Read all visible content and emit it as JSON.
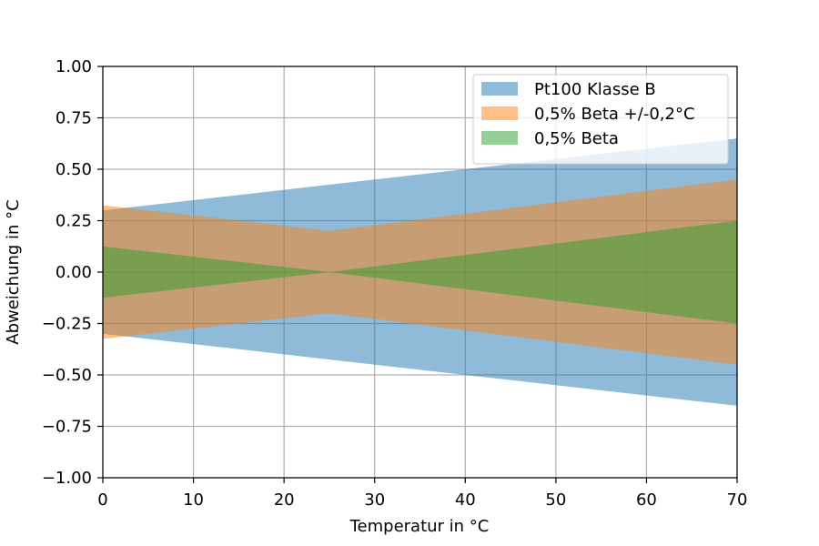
{
  "chart_data": {
    "type": "area",
    "title": "",
    "xlabel": "Temperatur in °C",
    "ylabel": "Abweichung in °C",
    "xlim": [
      0,
      70
    ],
    "ylim": [
      -1.0,
      1.0
    ],
    "xticks": [
      0,
      10,
      20,
      30,
      40,
      50,
      60,
      70
    ],
    "xtick_labels": [
      "0",
      "10",
      "20",
      "30",
      "40",
      "50",
      "60",
      "70"
    ],
    "yticks": [
      -1.0,
      -0.75,
      -0.5,
      -0.25,
      0.0,
      0.25,
      0.5,
      0.75,
      1.0
    ],
    "ytick_labels": [
      "−1.00",
      "−0.75",
      "−0.50",
      "−0.25",
      "0.00",
      "0.25",
      "0.50",
      "0.75",
      "1.00"
    ],
    "grid": true,
    "legend_position": "top-right",
    "series": [
      {
        "name": "Pt100 Klasse B",
        "color": "#1f77b4",
        "alpha": 0.5,
        "x": [
          0,
          70
        ],
        "upper": [
          0.3,
          0.65
        ],
        "lower": [
          -0.3,
          -0.65
        ]
      },
      {
        "name": "0,5% Beta +/-0,2°C",
        "color": "#ff7f0e",
        "alpha": 0.5,
        "x": [
          0,
          25,
          70
        ],
        "upper": [
          0.325,
          0.2,
          0.45
        ],
        "lower": [
          -0.325,
          -0.2,
          -0.45
        ]
      },
      {
        "name": "0,5% Beta",
        "color": "#2ca02c",
        "alpha": 0.5,
        "x": [
          0,
          25,
          70
        ],
        "upper": [
          0.125,
          0.0,
          0.25
        ],
        "lower": [
          -0.125,
          0.0,
          -0.25
        ]
      }
    ]
  }
}
